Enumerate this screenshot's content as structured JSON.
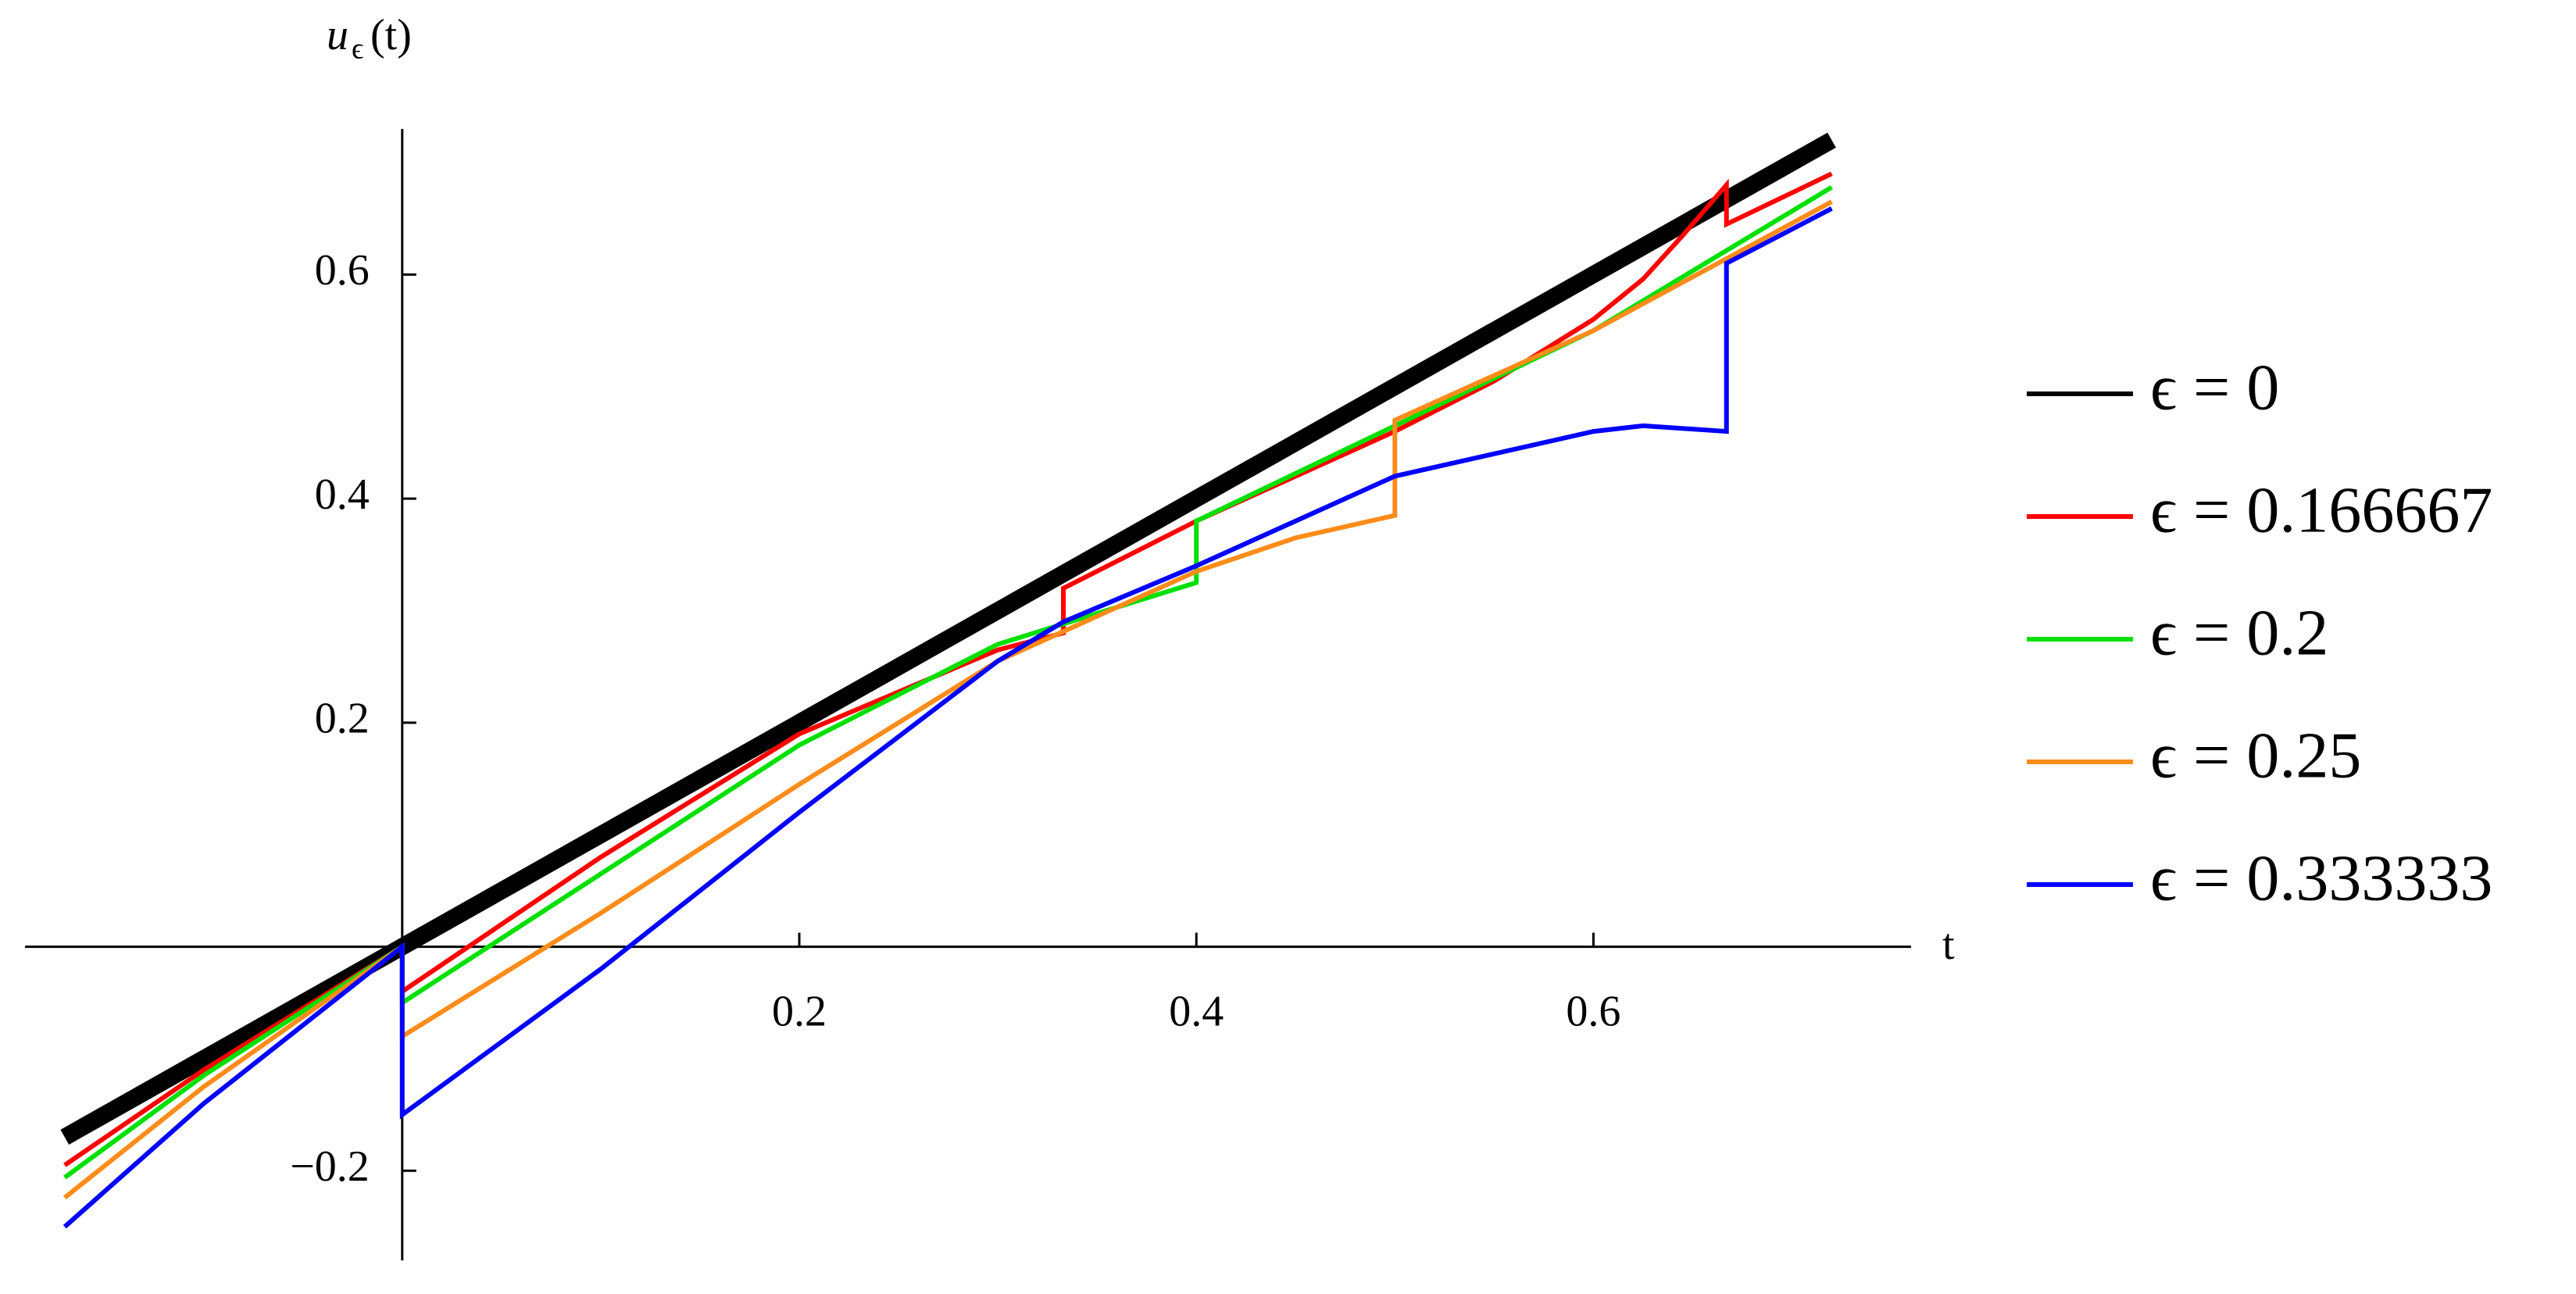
{
  "chart_data": {
    "type": "line",
    "xlabel": "t",
    "ylabel": "u",
    "ylabel_subscript": "ϵ",
    "ylabel_suffix": "(t)",
    "xlim": [
      -0.19,
      0.76
    ],
    "ylim": [
      -0.28,
      0.73
    ],
    "xticks": [
      0.2,
      0.4,
      0.6
    ],
    "yticks": [
      {
        "value": -0.2,
        "label": "−0.2"
      },
      0.2,
      0.4,
      0.6
    ],
    "legend": "right",
    "series": [
      {
        "name": "ϵ = 0",
        "color": "#000000",
        "x": [
          -0.17,
          0.72
        ],
        "values": [
          -0.17,
          0.72
        ]
      },
      {
        "name": "ϵ = 0.166667",
        "color": "#ff0000",
        "x": [
          -0.17,
          -0.1,
          0,
          0,
          0.1,
          0.2,
          0.3,
          0.333,
          0.333,
          0.4,
          0.5,
          0.55,
          0.6,
          0.625,
          0.645,
          0.667,
          0.667,
          0.72
        ],
        "values": [
          -0.195,
          -0.11,
          0,
          -0.04,
          0.08,
          0.19,
          0.265,
          0.28,
          0.32,
          0.38,
          0.46,
          0.505,
          0.56,
          0.596,
          0.635,
          0.68,
          0.645,
          0.69
        ]
      },
      {
        "name": "ϵ = 0.2",
        "color": "#00e000",
        "x": [
          -0.17,
          -0.1,
          0,
          0,
          0.1,
          0.2,
          0.3,
          0.4,
          0.4,
          0.5,
          0.6,
          0.72
        ],
        "values": [
          -0.206,
          -0.115,
          0,
          -0.05,
          0.065,
          0.18,
          0.27,
          0.325,
          0.38,
          0.465,
          0.55,
          0.678
        ]
      },
      {
        "name": "ϵ = 0.25",
        "color": "#ff8c1a",
        "x": [
          -0.17,
          -0.1,
          0,
          0,
          0.1,
          0.2,
          0.3,
          0.4,
          0.45,
          0.5,
          0.5,
          0.6,
          0.72
        ],
        "values": [
          -0.224,
          -0.125,
          0,
          -0.08,
          0.03,
          0.145,
          0.255,
          0.335,
          0.365,
          0.385,
          0.47,
          0.55,
          0.665
        ]
      },
      {
        "name": "ϵ = 0.333333",
        "color": "#0000ff",
        "x": [
          -0.17,
          -0.1,
          0,
          0,
          0.1,
          0.2,
          0.3,
          0.333,
          0.4,
          0.5,
          0.6,
          0.625,
          0.667,
          0.667,
          0.72
        ],
        "values": [
          -0.25,
          -0.14,
          0,
          -0.15,
          -0.02,
          0.12,
          0.255,
          0.29,
          0.34,
          0.42,
          0.46,
          0.465,
          0.46,
          0.61,
          0.659
        ]
      }
    ]
  }
}
